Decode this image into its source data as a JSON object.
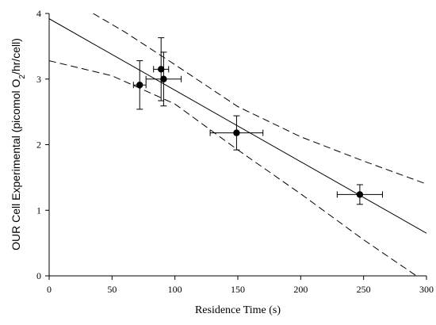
{
  "chart_data": {
    "type": "scatter",
    "xlabel": "Residence Time (s)",
    "ylabel_parts": [
      "OUR Cell Experimental (picomol O",
      "2",
      "/hr/cell)"
    ],
    "xlim": [
      0,
      300
    ],
    "ylim": [
      0,
      4
    ],
    "x_ticks": [
      0,
      50,
      100,
      150,
      200,
      250,
      300
    ],
    "y_ticks": [
      0,
      1,
      2,
      3,
      4
    ],
    "grid": false,
    "points": [
      {
        "x": 72,
        "y": 2.91,
        "xerr": 5,
        "yerr": 0.37
      },
      {
        "x": 89,
        "y": 3.15,
        "xerr": 6,
        "yerr": 0.48
      },
      {
        "x": 91,
        "y": 3.0,
        "xerr": 14,
        "yerr": 0.41
      },
      {
        "x": 149,
        "y": 2.18,
        "xerr": 21,
        "yerr": 0.26
      },
      {
        "x": 247,
        "y": 1.24,
        "xerr": 18,
        "yerr": 0.15
      }
    ],
    "fit_line": {
      "x0": 0,
      "y0": 3.92,
      "x1": 300,
      "y1": 0.65
    },
    "confidence_band": {
      "upper": [
        [
          35,
          4.0
        ],
        [
          60,
          3.72
        ],
        [
          100,
          3.22
        ],
        [
          150,
          2.58
        ],
        [
          200,
          2.12
        ],
        [
          250,
          1.75
        ],
        [
          300,
          1.4
        ]
      ],
      "lower": [
        [
          0,
          3.28
        ],
        [
          50,
          3.05
        ],
        [
          100,
          2.62
        ],
        [
          150,
          1.92
        ],
        [
          200,
          1.25
        ],
        [
          250,
          0.55
        ],
        [
          292,
          0.0
        ]
      ]
    }
  }
}
